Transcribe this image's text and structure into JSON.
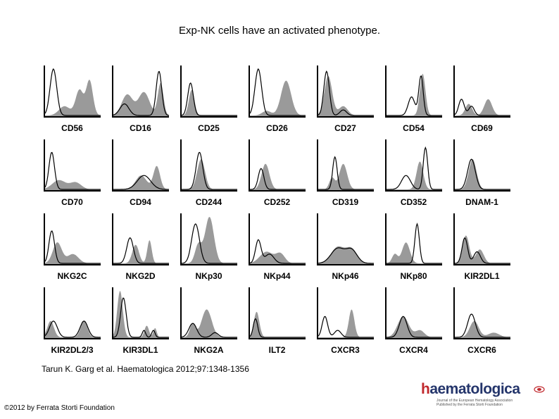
{
  "title": "Exp-NK cells have an activated phenotype.",
  "figure": {
    "rows": [
      [
        "CD56",
        "CD16",
        "CD25",
        "CD26",
        "CD27",
        "CD54",
        "CD69"
      ],
      [
        "CD70",
        "CD94",
        "CD244",
        "CD252",
        "CD319",
        "CD352",
        "DNAM-1"
      ],
      [
        "NKG2C",
        "NKG2D",
        "NKp30",
        "NKp44",
        "NKp46",
        "NKp80",
        "KIR2DL1"
      ],
      [
        "KIR2DL2/3",
        "KIR3DL1",
        "NKG2A",
        "ILT2",
        "CXCR3",
        "CXCR4",
        "CXCR6"
      ]
    ]
  },
  "colors": {
    "fill": "#9a9a9a",
    "line": "#000000"
  },
  "citation": "Tarun K. Garg et al. Haematologica 2012;97:1348-1356",
  "copyright": "©2012 by Ferrata Storti Foundation",
  "logo": {
    "name_prefix": "h",
    "name_rest": "aematologica",
    "tagline_1": "Journal of the European Hematology Association",
    "tagline_2": "Published by the Ferrata Storti Foundation"
  }
}
